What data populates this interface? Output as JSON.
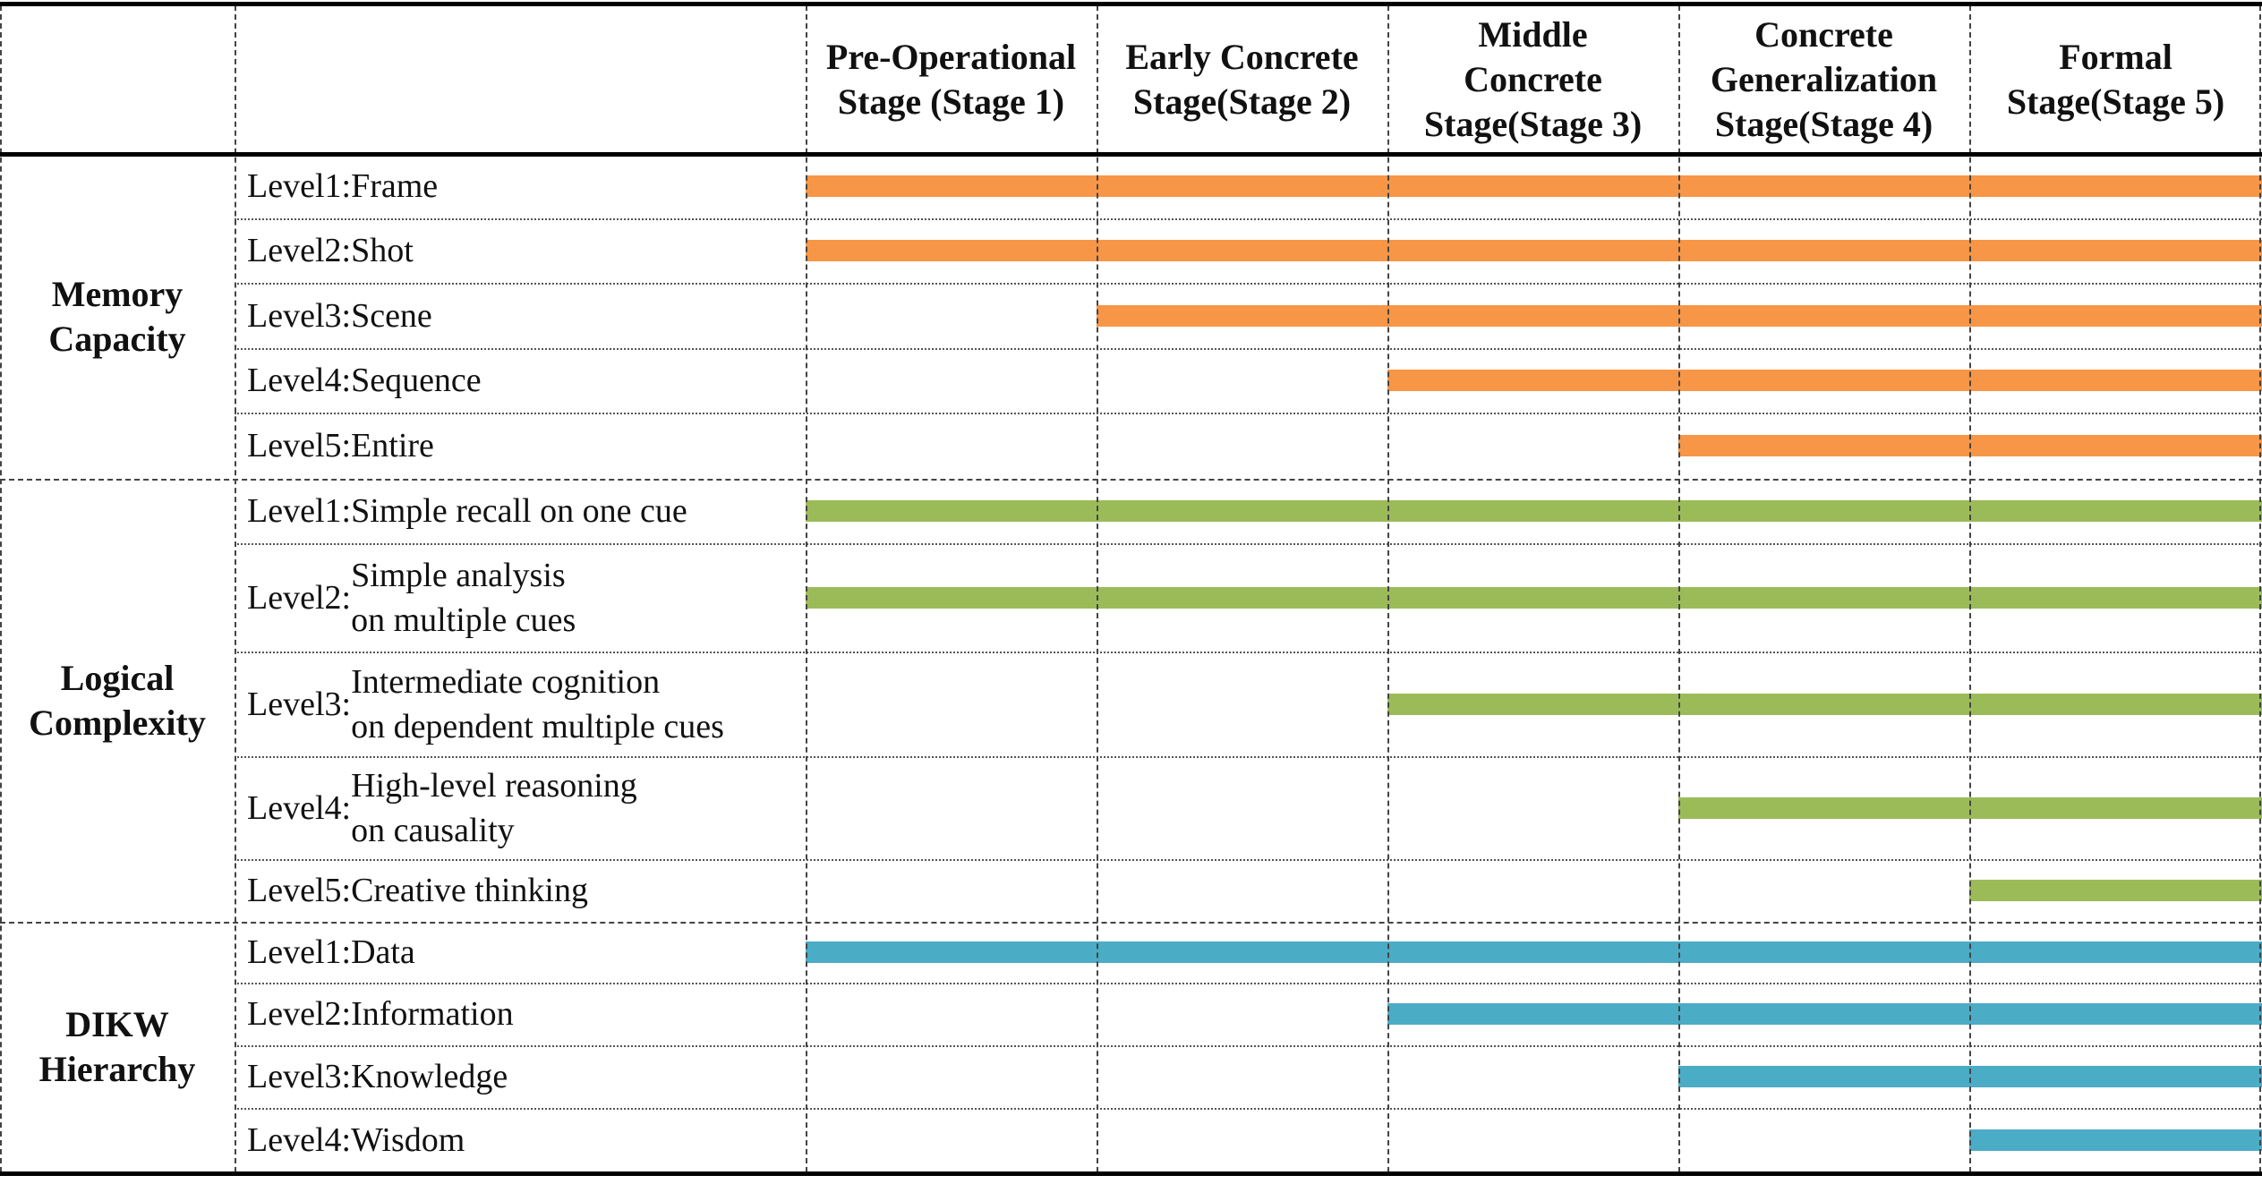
{
  "stages": [
    "Pre-Operational\nStage (Stage 1)",
    "Early Concrete\nStage(Stage 2)",
    "Middle\nConcrete\nStage(Stage 3)",
    "Concrete\nGeneralization\nStage(Stage 4)",
    "Formal\nStage(Stage 5)"
  ],
  "colors": {
    "memory": "#F79646",
    "logic": "#9BBB59",
    "dikw": "#4BACC6"
  },
  "groups": [
    {
      "name": "Memory\nCapacity",
      "color_key": "memory",
      "rows": [
        {
          "prefix": "Level1: ",
          "text": "Frame",
          "start_stage": 1
        },
        {
          "prefix": "Level2: ",
          "text": "Shot",
          "start_stage": 1
        },
        {
          "prefix": "Level3: ",
          "text": "Scene",
          "start_stage": 2
        },
        {
          "prefix": "Level4: ",
          "text": "Sequence",
          "start_stage": 3
        },
        {
          "prefix": "Level5: ",
          "text": "Entire",
          "start_stage": 4
        }
      ]
    },
    {
      "name": "Logical\nComplexity",
      "color_key": "logic",
      "rows": [
        {
          "prefix": "Level1: ",
          "text": "Simple recall on one cue",
          "start_stage": 1
        },
        {
          "prefix": "Level2: ",
          "text": "Simple analysis\non multiple cues",
          "start_stage": 1
        },
        {
          "prefix": "Level3: ",
          "text": "Intermediate cognition\non dependent multiple cues",
          "start_stage": 3
        },
        {
          "prefix": "Level4: ",
          "text": "High-level reasoning\non causality",
          "start_stage": 4
        },
        {
          "prefix": "Level5: ",
          "text": "Creative thinking",
          "start_stage": 5
        }
      ]
    },
    {
      "name": "DIKW\nHierarchy",
      "color_key": "dikw",
      "rows": [
        {
          "prefix": "Level1: ",
          "text": "Data",
          "start_stage": 1
        },
        {
          "prefix": "Level2: ",
          "text": "Information",
          "start_stage": 3
        },
        {
          "prefix": "Level3: ",
          "text": "Knowledge",
          "start_stage": 4
        },
        {
          "prefix": "Level4: ",
          "text": "Wisdom",
          "start_stage": 5
        }
      ]
    }
  ]
}
